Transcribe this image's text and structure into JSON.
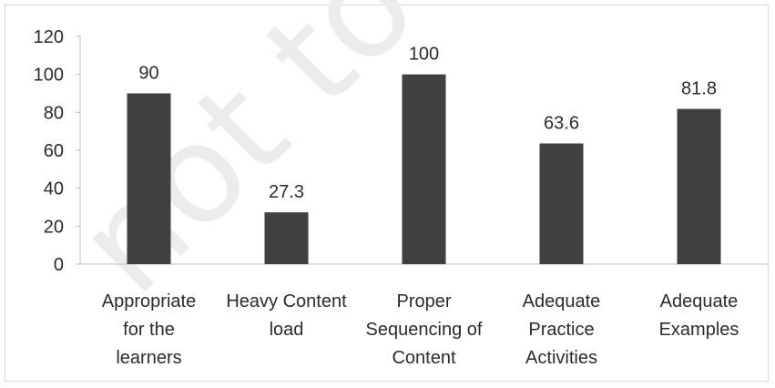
{
  "chart_data": {
    "type": "bar",
    "categories": [
      [
        "Appropriate",
        "for the",
        "learners"
      ],
      [
        "Heavy Content",
        "load"
      ],
      [
        "Proper",
        "Sequencing of",
        "Content"
      ],
      [
        "Adequate",
        "Practice",
        "Activities"
      ],
      [
        "Adequate",
        "Examples"
      ]
    ],
    "values": [
      90,
      27.3,
      100,
      63.6,
      81.8
    ],
    "data_labels": [
      "90",
      "27.3",
      "100",
      "63.6",
      "81.8"
    ],
    "yticks": [
      "0",
      "20",
      "40",
      "60",
      "80",
      "100",
      "120"
    ],
    "ylim": [
      0,
      120
    ],
    "grid": false,
    "legend": "none",
    "bar_color": "#404040",
    "watermark": "not to be"
  }
}
